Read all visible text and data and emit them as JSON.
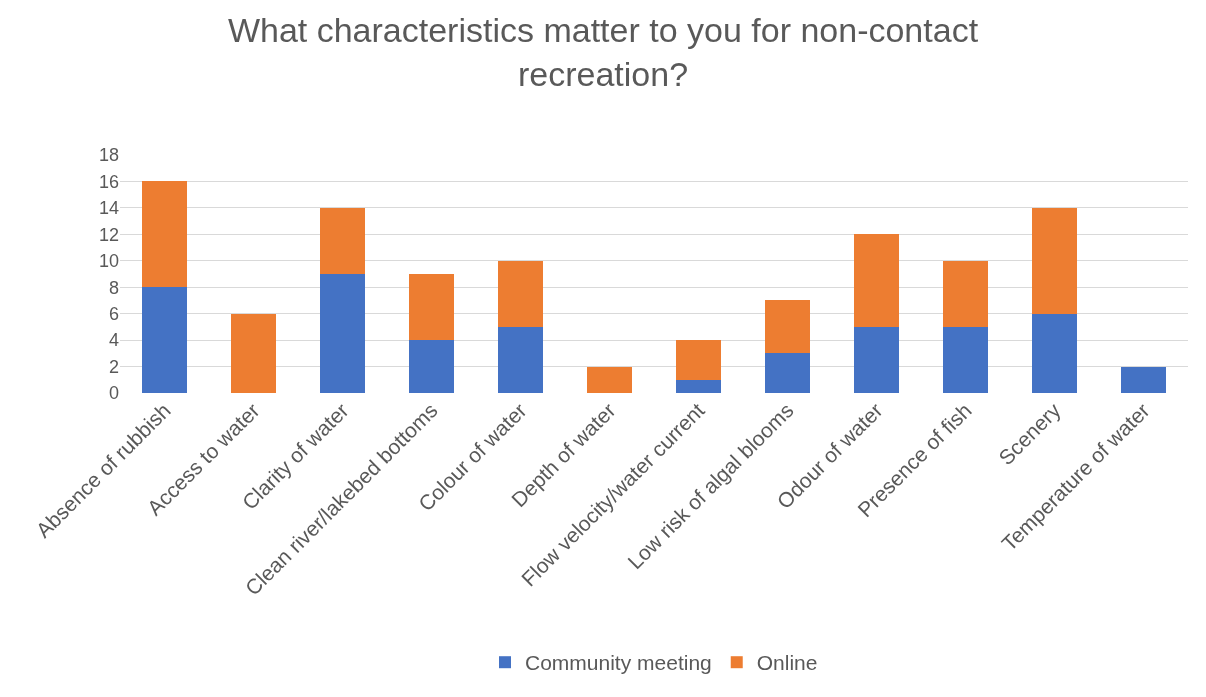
{
  "chart_data": {
    "type": "bar",
    "stacked": true,
    "title": "What characteristics matter to you for non-contact recreation?",
    "categories": [
      "Absence of rubbish",
      "Access to water",
      "Clarity of water",
      "Clean river/lakebed bottoms",
      "Colour of water",
      "Depth of water",
      "Flow velocity/water current",
      "Low risk of algal blooms",
      "Odour of water",
      "Presence of fish",
      "Scenery",
      "Temperature of water"
    ],
    "series": [
      {
        "name": "Community meeting",
        "color": "#4472c4",
        "values": [
          8,
          0,
          9,
          4,
          5,
          0,
          1,
          3,
          5,
          5,
          6,
          2
        ]
      },
      {
        "name": "Online",
        "color": "#ed7d31",
        "values": [
          8,
          6,
          5,
          5,
          5,
          2,
          3,
          4,
          7,
          5,
          8,
          0
        ]
      }
    ],
    "ylim": [
      0,
      18
    ],
    "yticks": [
      0,
      2,
      4,
      6,
      8,
      10,
      12,
      14,
      16,
      18
    ],
    "grid": "y",
    "legend": "bottom"
  }
}
